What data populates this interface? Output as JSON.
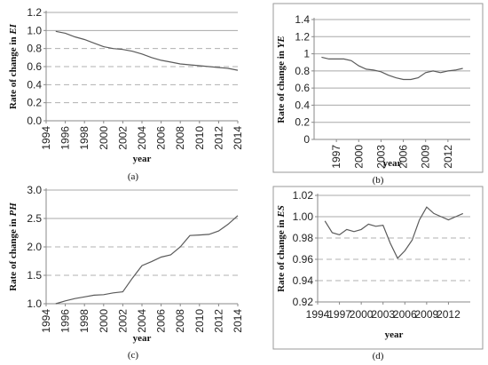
{
  "chart_data": [
    {
      "id": "a",
      "type": "line",
      "panel_label": "(a)",
      "ylabel_prefix": "Rate of change in ",
      "ylabel_var": "EI",
      "xlabel": "year",
      "ylim": [
        0,
        1.2
      ],
      "yticks": [
        0,
        0.2,
        0.4,
        0.6,
        0.8,
        1.0,
        1.2
      ],
      "ytick_labels": [
        "0.0",
        "0.2",
        "0.4",
        "0.6",
        "0.8",
        "1.0",
        "1.2"
      ],
      "dashed_y": [
        0.2,
        0.4,
        0.6,
        0.8
      ],
      "solid_y": [
        1.0,
        1.2
      ],
      "xlim": [
        1994,
        2014
      ],
      "xticks": [
        1994,
        1996,
        1998,
        2000,
        2002,
        2004,
        2006,
        2008,
        2010,
        2012,
        2014
      ],
      "x": [
        1995,
        1996,
        1997,
        1998,
        1999,
        2000,
        2001,
        2002,
        2003,
        2004,
        2005,
        2006,
        2007,
        2008,
        2009,
        2010,
        2011,
        2012,
        2013,
        2014
      ],
      "y": [
        0.99,
        0.97,
        0.93,
        0.9,
        0.86,
        0.82,
        0.8,
        0.79,
        0.77,
        0.74,
        0.7,
        0.67,
        0.65,
        0.63,
        0.62,
        0.61,
        0.6,
        0.59,
        0.58,
        0.56
      ]
    },
    {
      "id": "b",
      "type": "line",
      "panel_label": "(b)",
      "ylabel_prefix": "Rate of change in ",
      "ylabel_var": "YE",
      "xlabel": "year",
      "ylim": [
        0,
        1.4
      ],
      "yticks": [
        0,
        0.2,
        0.4,
        0.6,
        0.8,
        1.0,
        1.2,
        1.4
      ],
      "ytick_labels": [
        "0",
        "0.2",
        "0.4",
        "0.6",
        "0.8",
        "1",
        "1.2",
        "1.4"
      ],
      "dashed_y": [],
      "solid_y": [
        0.2,
        0.4,
        0.6,
        0.8,
        1.0,
        1.2,
        1.4
      ],
      "xlim": [
        1994,
        2015
      ],
      "xticks": [
        1997,
        2000,
        2003,
        2006,
        2009,
        2012
      ],
      "x": [
        1995,
        1996,
        1997,
        1998,
        1999,
        2000,
        2001,
        2002,
        2003,
        2004,
        2005,
        2006,
        2007,
        2008,
        2009,
        2010,
        2011,
        2012,
        2013,
        2014
      ],
      "y": [
        0.96,
        0.94,
        0.94,
        0.94,
        0.92,
        0.86,
        0.82,
        0.81,
        0.79,
        0.75,
        0.72,
        0.7,
        0.7,
        0.72,
        0.78,
        0.8,
        0.78,
        0.8,
        0.81,
        0.83
      ]
    },
    {
      "id": "c",
      "type": "line",
      "panel_label": "(c)",
      "ylabel_prefix": "Rate of change in ",
      "ylabel_var": "PH",
      "xlabel": "year",
      "ylim": [
        1.0,
        3.0
      ],
      "yticks": [
        1.0,
        1.5,
        2.0,
        2.5,
        3.0
      ],
      "ytick_labels": [
        "1.0",
        "1.5",
        "2.0",
        "2.5",
        "3.0"
      ],
      "dashed_y": [
        1.5,
        2.0
      ],
      "solid_y": [
        2.5,
        3.0
      ],
      "xlim": [
        1994,
        2014
      ],
      "xticks": [
        1994,
        1996,
        1998,
        2000,
        2002,
        2004,
        2006,
        2008,
        2010,
        2012,
        2014
      ],
      "x": [
        1995,
        1996,
        1997,
        1998,
        1999,
        2000,
        2001,
        2002,
        2003,
        2004,
        2005,
        2006,
        2007,
        2008,
        2009,
        2010,
        2011,
        2012,
        2013,
        2014
      ],
      "y": [
        1.0,
        1.05,
        1.09,
        1.12,
        1.15,
        1.16,
        1.19,
        1.21,
        1.45,
        1.67,
        1.74,
        1.82,
        1.86,
        2.0,
        2.2,
        2.21,
        2.22,
        2.28,
        2.4,
        2.55
      ]
    },
    {
      "id": "d",
      "type": "line",
      "panel_label": "(d)",
      "ylabel_prefix": "Rate of change in ",
      "ylabel_var": "ES",
      "xlabel": "year",
      "ylim": [
        0.92,
        1.02
      ],
      "yticks": [
        0.92,
        0.94,
        0.96,
        0.98,
        1.0,
        1.02
      ],
      "ytick_labels": [
        "0.92",
        "0.94",
        "0.96",
        "0.98",
        "1.00",
        "1.02"
      ],
      "dashed_y": [
        0.94,
        0.96,
        0.98
      ],
      "solid_y": [
        1.0,
        1.02
      ],
      "xlim": [
        1994,
        2015
      ],
      "xticks": [
        1994,
        1997,
        2000,
        2003,
        2006,
        2009,
        2012
      ],
      "x": [
        1995,
        1996,
        1997,
        1998,
        1999,
        2000,
        2001,
        2002,
        2003,
        2004,
        2005,
        2006,
        2007,
        2008,
        2009,
        2010,
        2011,
        2012,
        2013,
        2014
      ],
      "y": [
        0.996,
        0.985,
        0.983,
        0.988,
        0.986,
        0.988,
        0.993,
        0.991,
        0.992,
        0.975,
        0.961,
        0.968,
        0.978,
        0.997,
        1.009,
        1.003,
        1.0,
        0.997,
        1.0,
        1.003
      ]
    }
  ]
}
